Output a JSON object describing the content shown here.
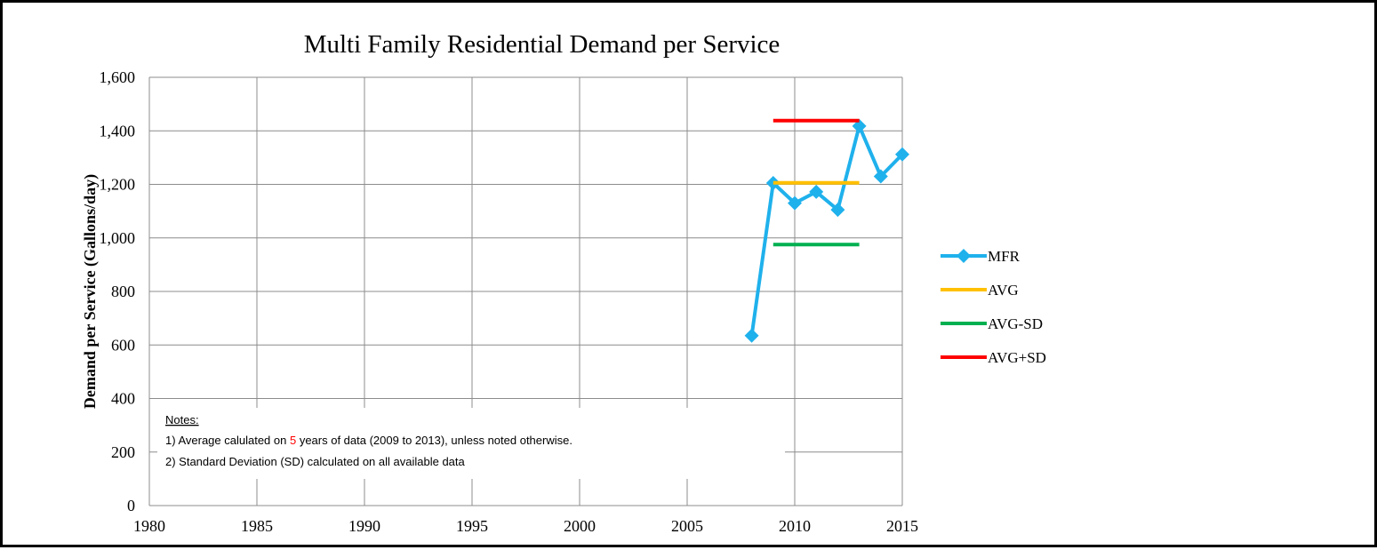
{
  "chart_data": {
    "type": "line",
    "title": "Multi Family Residential Demand per Service",
    "xlabel": "",
    "ylabel": "Demand per Service (Gallons/day)",
    "xlim": [
      1980,
      2015
    ],
    "ylim": [
      0,
      1600
    ],
    "x_ticks": [
      1980,
      1985,
      1990,
      1995,
      2000,
      2005,
      2010,
      2015
    ],
    "y_ticks": [
      0,
      200,
      400,
      600,
      800,
      1000,
      1200,
      1400,
      1600
    ],
    "y_tick_labels": [
      "0",
      "200",
      "400",
      "600",
      "800",
      "1,000",
      "1,200",
      "1,400",
      "1,600"
    ],
    "grid": true,
    "legend_position": "right",
    "series": [
      {
        "name": "MFR",
        "color": "#1fb1ec",
        "marker": "diamond",
        "x": [
          2008,
          2009,
          2010,
          2011,
          2012,
          2013,
          2014,
          2015
        ],
        "y": [
          635,
          1205,
          1130,
          1172,
          1105,
          1418,
          1230,
          1312
        ]
      },
      {
        "name": "AVG",
        "color": "#ffc000",
        "x": [
          2009,
          2013
        ],
        "y": [
          1206,
          1206
        ]
      },
      {
        "name": "AVG-SD",
        "color": "#00b050",
        "x": [
          2009,
          2013
        ],
        "y": [
          975,
          975
        ]
      },
      {
        "name": "AVG+SD",
        "color": "#ff0000",
        "x": [
          2009,
          2013
        ],
        "y": [
          1438,
          1438
        ]
      }
    ],
    "notes": {
      "heading": "Notes:",
      "line1_before": "1) Average calulated on ",
      "line1_highlight": "5",
      "line1_after": " years of data (2009 to 2013), unless noted otherwise.",
      "line2": "2) Standard Deviation (SD) calculated on all available data",
      "highlight_color": "#ff0000"
    }
  }
}
